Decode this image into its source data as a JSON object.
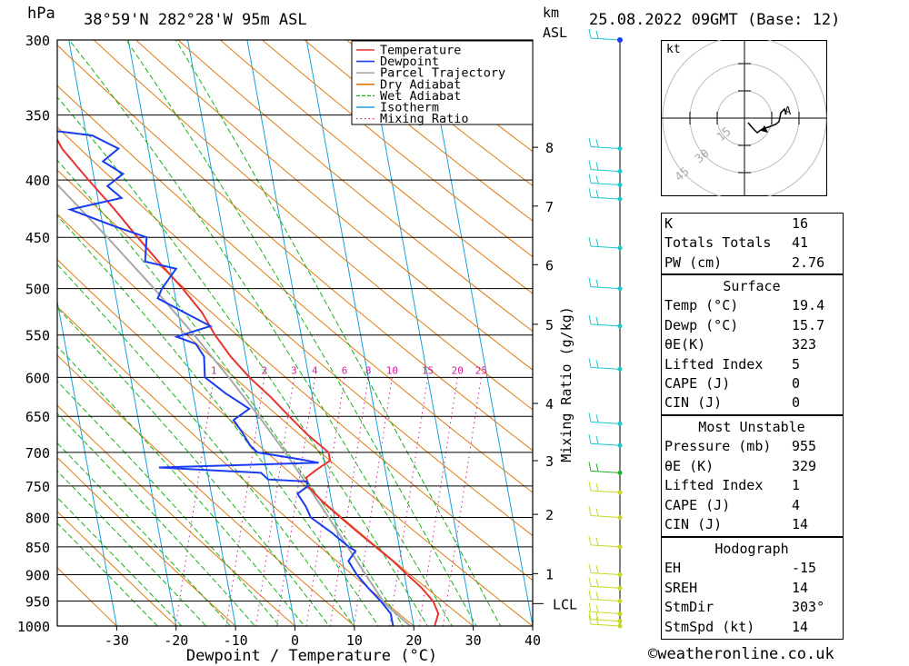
{
  "header": {
    "pressure_unit": "hPa",
    "location": "38°59'N  282°28'W  95m  ASL",
    "km_label": "km",
    "asl_label": "ASL",
    "datetime": "25.08.2022  09GMT  (Base: 12)"
  },
  "chart_data": {
    "type": "line",
    "xlabel": "Dewpoint / Temperature (°C)",
    "ylabel": "hPa",
    "mixing_ratio_axis_label": "Mixing Ratio (g/kg)",
    "xlim": [
      -40,
      40
    ],
    "x_ticks": [
      -30,
      -20,
      -10,
      0,
      10,
      20,
      30,
      40
    ],
    "pressure_levels": [
      300,
      350,
      400,
      450,
      500,
      550,
      600,
      650,
      700,
      750,
      800,
      850,
      900,
      950,
      1000
    ],
    "km_ticks": [
      {
        "km": "8",
        "p": 374
      },
      {
        "km": "7",
        "p": 422
      },
      {
        "km": "6",
        "p": 476
      },
      {
        "km": "5",
        "p": 538
      },
      {
        "km": "4",
        "p": 633
      },
      {
        "km": "3",
        "p": 712
      },
      {
        "km": "2",
        "p": 795
      },
      {
        "km": "1",
        "p": 898
      }
    ],
    "lcl": {
      "label": "LCL",
      "p": 955
    },
    "mixing_ratio_labels": [
      {
        "text": "1",
        "t": -6
      },
      {
        "text": "2",
        "t": 2.5
      },
      {
        "text": "3",
        "t": 7.5
      },
      {
        "text": "4",
        "t": 11
      },
      {
        "text": "6",
        "t": 16
      },
      {
        "text": "8",
        "t": 20
      },
      {
        "text": "10",
        "t": 24
      },
      {
        "text": "15",
        "t": 30
      },
      {
        "text": "20",
        "t": 35
      },
      {
        "text": "25",
        "t": 39
      }
    ],
    "legend": [
      {
        "name": "Temperature",
        "color": "#e8332f",
        "style": "solid"
      },
      {
        "name": "Dewpoint",
        "color": "#1a3cf0",
        "style": "solid"
      },
      {
        "name": "Parcel Trajectory",
        "color": "#a8a8a8",
        "style": "solid"
      },
      {
        "name": "Dry Adiabat",
        "color": "#e07a10",
        "style": "solid"
      },
      {
        "name": "Wet Adiabat",
        "color": "#18b018",
        "style": "dashed"
      },
      {
        "name": "Isotherm",
        "color": "#18a0e0",
        "style": "solid"
      },
      {
        "name": "Mixing Ratio",
        "color": "#d0209a",
        "style": "dotted"
      }
    ],
    "temperature": [
      [
        1000,
        23.5
      ],
      [
        975,
        24.5
      ],
      [
        950,
        24
      ],
      [
        925,
        22.5
      ],
      [
        900,
        20.5
      ],
      [
        875,
        18.5
      ],
      [
        850,
        16
      ],
      [
        825,
        13.5
      ],
      [
        800,
        11
      ],
      [
        775,
        8.5
      ],
      [
        750,
        6.5
      ],
      [
        737,
        6.5
      ],
      [
        725,
        8.5
      ],
      [
        712,
        11
      ],
      [
        700,
        11
      ],
      [
        675,
        8
      ],
      [
        650,
        5.5
      ],
      [
        625,
        3
      ],
      [
        600,
        0
      ],
      [
        575,
        -2.5
      ],
      [
        550,
        -4.5
      ],
      [
        525,
        -6
      ],
      [
        500,
        -8.5
      ],
      [
        475,
        -11.5
      ],
      [
        450,
        -14.5
      ],
      [
        425,
        -17.5
      ],
      [
        400,
        -21
      ],
      [
        375,
        -24.5
      ],
      [
        362,
        -25.5
      ],
      [
        350,
        -26.5
      ],
      [
        325,
        -30.5
      ],
      [
        300,
        -35
      ]
    ],
    "dewpoint": [
      [
        1000,
        16.5
      ],
      [
        975,
        16.5
      ],
      [
        950,
        15.2
      ],
      [
        925,
        13.5
      ],
      [
        900,
        12
      ],
      [
        875,
        11
      ],
      [
        857,
        12.5
      ],
      [
        850,
        11.5
      ],
      [
        825,
        9
      ],
      [
        800,
        6
      ],
      [
        782,
        5.5
      ],
      [
        762,
        4.5
      ],
      [
        750,
        6.5
      ],
      [
        743,
        6.5
      ],
      [
        740,
        0
      ],
      [
        730,
        -1
      ],
      [
        722,
        -18
      ],
      [
        715,
        9
      ],
      [
        710,
        6
      ],
      [
        700,
        -1
      ],
      [
        690,
        -2
      ],
      [
        670,
        -3
      ],
      [
        655,
        -4
      ],
      [
        640,
        -1
      ],
      [
        620,
        -4.5
      ],
      [
        600,
        -7.5
      ],
      [
        575,
        -7
      ],
      [
        560,
        -8
      ],
      [
        552,
        -11
      ],
      [
        540,
        -5
      ],
      [
        525,
        -9
      ],
      [
        510,
        -13
      ],
      [
        500,
        -12
      ],
      [
        480,
        -9
      ],
      [
        473,
        -14
      ],
      [
        450,
        -13
      ],
      [
        440,
        -18
      ],
      [
        425,
        -25
      ],
      [
        415,
        -16
      ],
      [
        405,
        -18
      ],
      [
        395,
        -15
      ],
      [
        385,
        -18
      ],
      [
        375,
        -15
      ],
      [
        365,
        -19
      ],
      [
        360,
        -28
      ],
      [
        352,
        -25
      ],
      [
        350,
        -33
      ],
      [
        300,
        -35
      ]
    ],
    "parcel": [
      [
        1000,
        19.4
      ],
      [
        955,
        15.8
      ],
      [
        900,
        13.5
      ],
      [
        850,
        11.3
      ],
      [
        800,
        9
      ],
      [
        750,
        6.5
      ],
      [
        700,
        3.7
      ],
      [
        650,
        0.4
      ],
      [
        600,
        -3.5
      ],
      [
        550,
        -8
      ],
      [
        500,
        -13.3
      ],
      [
        450,
        -19.6
      ],
      [
        400,
        -27
      ],
      [
        350,
        -35.8
      ],
      [
        300,
        -46
      ]
    ],
    "wind_barbs_pressures": [
      300,
      375,
      393,
      404,
      416,
      460,
      500,
      540,
      590,
      660,
      690,
      730,
      760,
      800,
      850,
      900,
      925,
      950,
      975,
      990,
      1000
    ]
  },
  "hodograph": {
    "unit": "kt",
    "ring_labels": [
      "15",
      "30",
      "45"
    ]
  },
  "indices": {
    "k_label": "K",
    "k_value": "16",
    "tt_label": "Totals Totals",
    "tt_value": "41",
    "pw_label": "PW (cm)",
    "pw_value": "2.76"
  },
  "surface": {
    "title": "Surface",
    "rows": [
      {
        "label": "Temp (°C)",
        "value": "19.4"
      },
      {
        "label": "Dewp (°C)",
        "value": "15.7"
      },
      {
        "label": "θE(K)",
        "value": "323"
      },
      {
        "label": "Lifted Index",
        "value": "5"
      },
      {
        "label": "CAPE (J)",
        "value": "0"
      },
      {
        "label": "CIN (J)",
        "value": "0"
      }
    ]
  },
  "most_unstable": {
    "title": "Most Unstable",
    "rows": [
      {
        "label": "Pressure (mb)",
        "value": "955"
      },
      {
        "label": "θE (K)",
        "value": "329"
      },
      {
        "label": "Lifted Index",
        "value": "1"
      },
      {
        "label": "CAPE (J)",
        "value": "4"
      },
      {
        "label": "CIN (J)",
        "value": "14"
      }
    ]
  },
  "hodograph_stats": {
    "title": "Hodograph",
    "rows": [
      {
        "label": "EH",
        "value": "-15"
      },
      {
        "label": "SREH",
        "value": "14"
      },
      {
        "label": "StmDir",
        "value": "303°"
      },
      {
        "label": "StmSpd (kt)",
        "value": "14"
      }
    ]
  },
  "footer": {
    "copyright": "©weatheronline.co.uk"
  }
}
